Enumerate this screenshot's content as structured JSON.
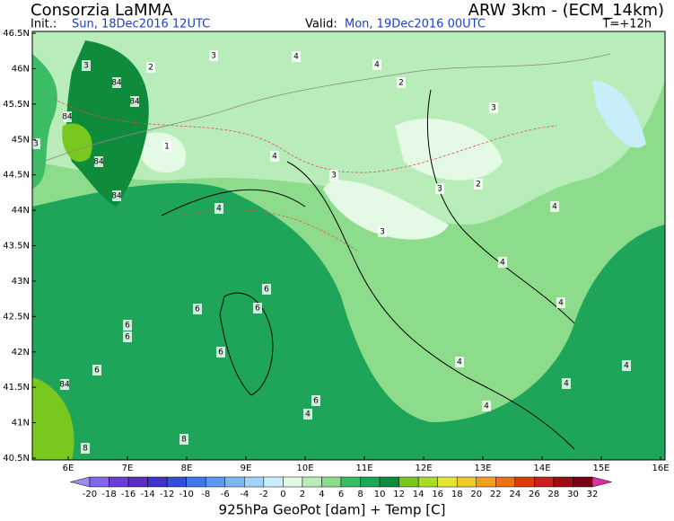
{
  "header": {
    "title": "Consorzia LaMMA",
    "model": "ARW 3km - (ECM_14km)",
    "init_label": "Init.:",
    "init_time": "Sun, 18Dec2016 12UTC",
    "valid_label": "Valid:",
    "valid_time": "Mon, 19Dec2016 00UTC",
    "lead": "T=+12h"
  },
  "map": {
    "lat_labels": [
      "46.5N",
      "46N",
      "45.5N",
      "45N",
      "44.5N",
      "44N",
      "43.5N",
      "43N",
      "42.5N",
      "42N",
      "41.5N",
      "41N",
      "40.5N"
    ],
    "lon_labels": [
      "6E",
      "7E",
      "8E",
      "9E",
      "10E",
      "11E",
      "12E",
      "13E",
      "14E",
      "15E",
      "16E"
    ],
    "contour_labels": [
      "3",
      "3",
      "4",
      "4",
      "3",
      "3",
      "2",
      "2",
      "1",
      "3",
      "3",
      "4",
      "4",
      "4",
      "4",
      "6",
      "6",
      "6",
      "6",
      "6",
      "6",
      "6",
      "6",
      "4",
      "4",
      "4",
      "4",
      "4",
      "8",
      "8",
      "84",
      "84",
      "84",
      "84",
      "84",
      "84",
      "2",
      "3",
      "4"
    ]
  },
  "colorbar": {
    "labels": [
      "-20",
      "-18",
      "-16",
      "-14",
      "-12",
      "-10",
      "-8",
      "-6",
      "-4",
      "-2",
      "0",
      "2",
      "4",
      "6",
      "8",
      "10",
      "12",
      "14",
      "16",
      "18",
      "20",
      "22",
      "24",
      "26",
      "28",
      "30",
      "32"
    ],
    "colors": [
      "#9b8cf0",
      "#8166e8",
      "#6a3fd8",
      "#5a2fc0",
      "#3f32c8",
      "#2f4fd8",
      "#3f78e8",
      "#5a9af0",
      "#78b8f5",
      "#a0d4fa",
      "#c8eefa",
      "#e4fae4",
      "#b8ecb8",
      "#8cdc8c",
      "#3cbc64",
      "#1ea55a",
      "#0e8c3c",
      "#78c81e",
      "#a8dc28",
      "#e6e632",
      "#f0c828",
      "#f0a01e",
      "#eb7314",
      "#dc3c0a",
      "#c81e1e",
      "#a00a14",
      "#780014",
      "#dc32a0"
    ],
    "caption": "925hPa GeoPot [dam] + Temp [C]"
  }
}
